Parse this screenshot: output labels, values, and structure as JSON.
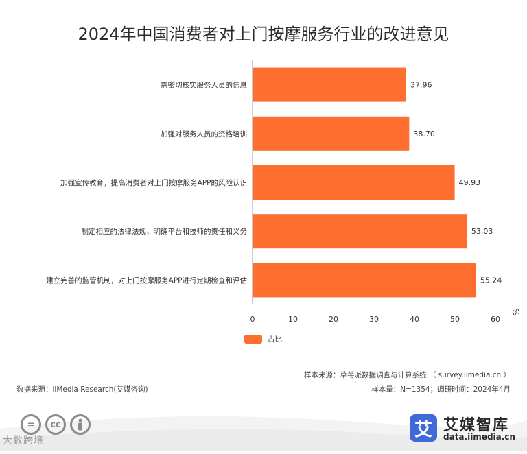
{
  "title": "2024年中国消费者对上门按摩服务行业的改进意见",
  "chart_data": {
    "type": "bar",
    "orientation": "horizontal",
    "categories": [
      "需密切核实服务人员的信息",
      "加强对服务人员的资格培训",
      "加强宣传教育，提高消费者对上门按摩服务APP的风险认识",
      "制定相应的法律法规，明确平台和技师的责任和义务",
      "建立完善的监管机制，对上门按摩服务APP进行定期检查和评估"
    ],
    "series": [
      {
        "name": "占比",
        "values": [
          37.96,
          38.7,
          49.93,
          53.03,
          55.24
        ],
        "value_labels": [
          "37.96",
          "38.70",
          "49.93",
          "53.03",
          "55.24"
        ]
      }
    ],
    "xlim": [
      0,
      60
    ],
    "x_ticks": [
      "0",
      "10",
      "20",
      "30",
      "40",
      "50",
      "60"
    ],
    "unit_label": "%",
    "grid": false,
    "legend_position": "bottom-center",
    "bar_color": "#fe6e2f"
  },
  "legend": {
    "label": "占比"
  },
  "footer": {
    "sample_source": "样本来源：草莓派数据调查与计算系统 （ survey.iimedia.cn ）",
    "data_source": "数据来源：iiMedia Research(艾媒咨询)",
    "sample_info": "样本量：N=1354；调研时间：2024年4月"
  },
  "branding": {
    "logo_char": "艾",
    "name": "艾媒智库",
    "url": "data.iimedia.cn",
    "watermark": "大数跨境",
    "license_icons": [
      "=",
      "cc",
      "person"
    ],
    "brand_color": "#3f6ad8"
  }
}
